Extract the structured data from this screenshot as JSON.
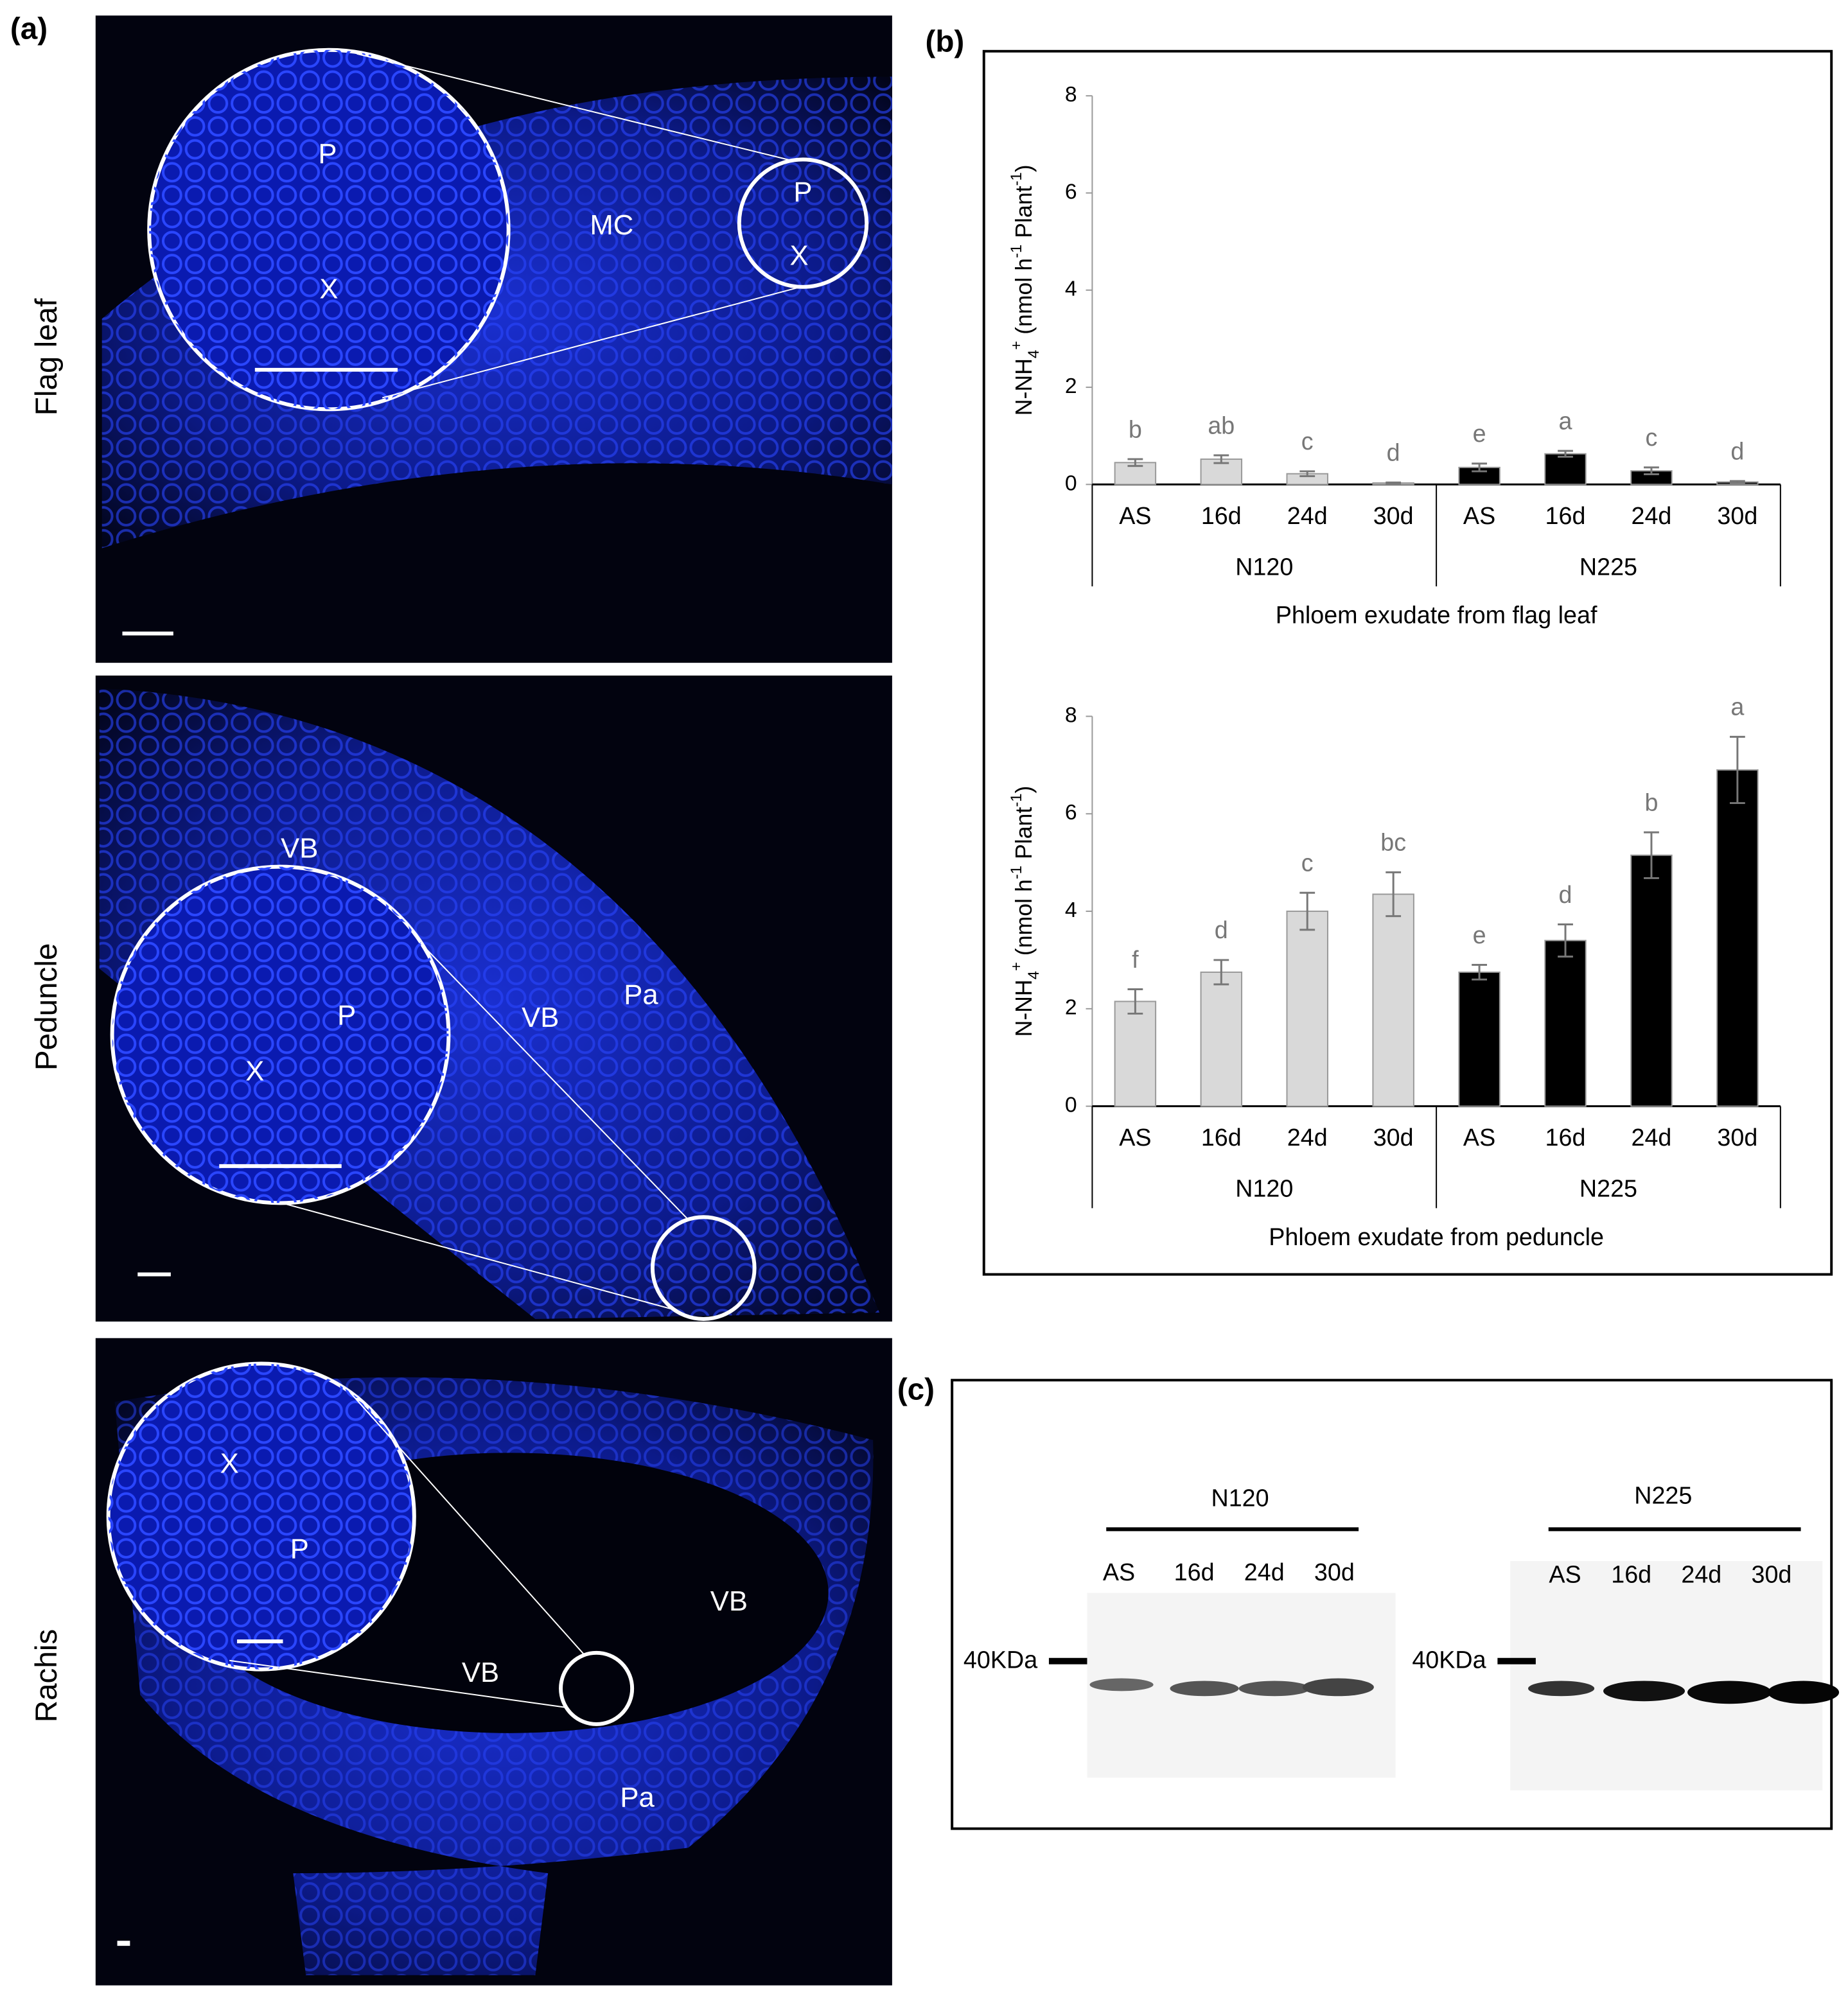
{
  "panel_labels": [
    "(a)",
    "(b)",
    "(c)"
  ],
  "panel_a": {
    "rows": [
      {
        "label": "Flag leaf",
        "annotations": [
          "P",
          "X",
          "MC",
          "P",
          "X"
        ]
      },
      {
        "label": "Peduncle",
        "annotations": [
          "VB",
          "P",
          "X",
          "VB",
          "Pa"
        ]
      },
      {
        "label": "Rachis",
        "annotations": [
          "X",
          "P",
          "VB",
          "VB",
          "Pa"
        ]
      }
    ]
  },
  "chart_data": [
    {
      "type": "bar",
      "title": "Phloem exudate from flag leaf",
      "y_label": [
        "N-NH",
        "4",
        "+",
        " (nmol h",
        "-1",
        " Plant",
        "-1",
        ")"
      ],
      "categories": [
        "AS",
        "16d",
        "24d",
        "30d"
      ],
      "series": [
        {
          "name": "N120",
          "color": "#d9d9d9",
          "values": [
            0.45,
            0.52,
            0.22,
            0.03
          ],
          "errors": [
            0.07,
            0.08,
            0.05,
            0.01
          ],
          "letters": [
            "b",
            "ab",
            "c",
            "d"
          ]
        },
        {
          "name": "N225",
          "color": "#000000",
          "values": [
            0.35,
            0.63,
            0.28,
            0.05
          ],
          "errors": [
            0.08,
            0.06,
            0.07,
            0.02
          ],
          "letters": [
            "e",
            "a",
            "c",
            "d"
          ]
        }
      ],
      "ylim": [
        0,
        8
      ],
      "yticks": [
        0,
        2,
        4,
        6,
        8
      ]
    },
    {
      "type": "bar",
      "title": "Phloem exudate from peduncle",
      "y_label": [
        "N-NH",
        "4",
        "+",
        " (nmol h",
        "-1",
        " Plant",
        "-1",
        ")"
      ],
      "categories": [
        "AS",
        "16d",
        "24d",
        "30d"
      ],
      "series": [
        {
          "name": "N120",
          "color": "#d9d9d9",
          "values": [
            2.15,
            2.75,
            4.0,
            4.35
          ],
          "errors": [
            0.25,
            0.25,
            0.38,
            0.45
          ],
          "letters": [
            "f",
            "d",
            "c",
            "bc"
          ]
        },
        {
          "name": "N225",
          "color": "#000000",
          "values": [
            2.75,
            3.4,
            5.15,
            6.9
          ],
          "errors": [
            0.15,
            0.33,
            0.47,
            0.68
          ],
          "letters": [
            "e",
            "d",
            "b",
            "a"
          ]
        }
      ],
      "ylim": [
        0,
        8
      ],
      "yticks": [
        0,
        2,
        4,
        6,
        8
      ]
    }
  ],
  "panel_c": {
    "marker": "40KDa",
    "groups": [
      {
        "name": "N120",
        "lanes": [
          "AS",
          "16d",
          "24d",
          "30d"
        ]
      },
      {
        "name": "N225",
        "lanes": [
          "AS",
          "16d",
          "24d",
          "30d"
        ]
      }
    ]
  }
}
